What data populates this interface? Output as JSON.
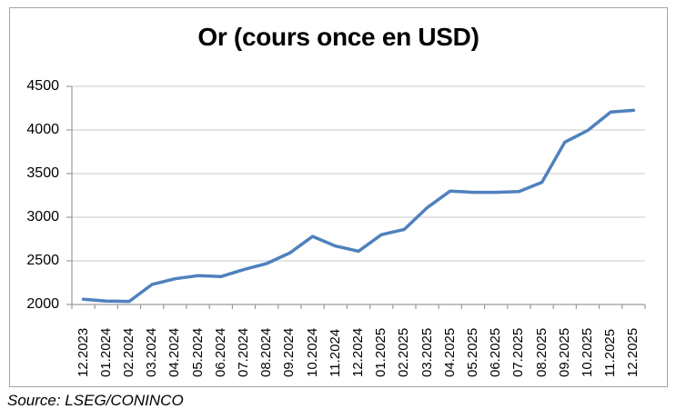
{
  "source_note": "Source: LSEG/CONINCO",
  "chart_data": {
    "type": "line",
    "title": "Or (cours once en USD)",
    "categories": [
      "12.2023",
      "01.2024",
      "02.2024",
      "03.2024",
      "04.2024",
      "05.2024",
      "06.2024",
      "07.2024",
      "08.2024",
      "09.2024",
      "10.2024",
      "11.2024",
      "12.2024",
      "01.2025",
      "02.2025",
      "03.2025",
      "04.2025",
      "05.2025",
      "06.2025",
      "07.2025",
      "08.2025",
      "09.2025",
      "10.2025",
      "11.2025",
      "12.2025"
    ],
    "series": [
      {
        "name": "Or (cours once en USD)",
        "values": [
          2060,
          2040,
          2035,
          2230,
          2295,
          2330,
          2320,
          2400,
          2470,
          2590,
          2780,
          2670,
          2610,
          2800,
          2860,
          3110,
          3300,
          3285,
          3285,
          3295,
          3400,
          3860,
          3995,
          4205,
          4225
        ]
      }
    ],
    "ylim": [
      2000,
      4500
    ],
    "yticks": [
      2000,
      2500,
      3000,
      3500,
      4000,
      4500
    ],
    "grid": true,
    "legend": "none",
    "colors": {
      "line": "#4F81BD",
      "gridline": "#c9c9c9",
      "axis": "#9b9b9b",
      "tick": "#9b9b9b",
      "frame_border": "#a6a6a6",
      "text": "#000000"
    }
  }
}
